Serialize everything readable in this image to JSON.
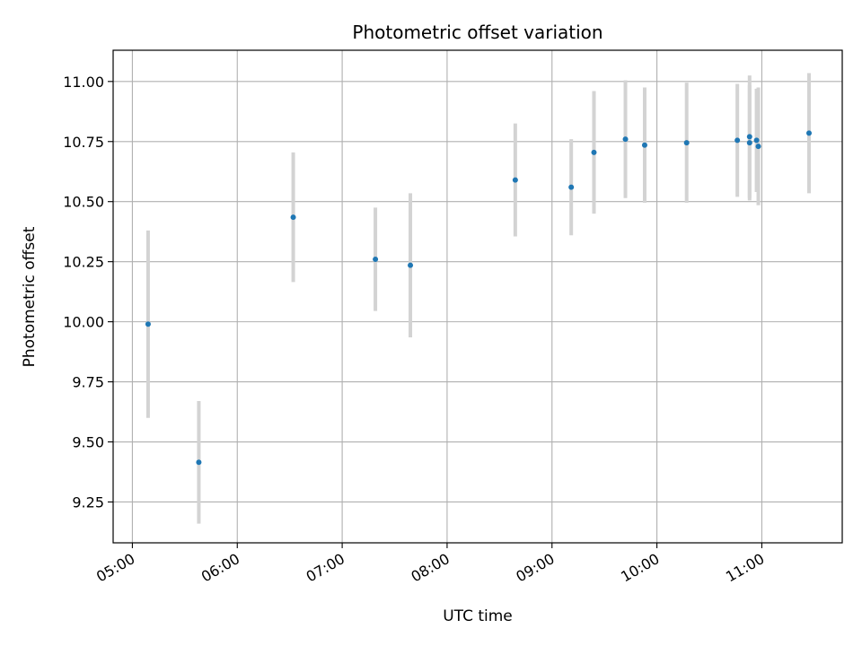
{
  "chart_data": {
    "type": "scatter",
    "title": "Photometric offset variation",
    "xlabel": "UTC time",
    "ylabel": "Photometric offset",
    "x_ticks": [
      "05:00",
      "06:00",
      "07:00",
      "08:00",
      "09:00",
      "10:00",
      "11:00"
    ],
    "y_ticks": [
      "9.25",
      "9.50",
      "9.75",
      "10.00",
      "10.25",
      "10.50",
      "10.75",
      "11.00"
    ],
    "ylim": [
      9.08,
      11.13
    ],
    "xlim": [
      "04:49",
      "11:46"
    ],
    "grid": true,
    "marker_color": "#1f77b4",
    "errorbar_color": "#d3d3d3",
    "points": [
      {
        "t": "05:09",
        "y": 9.99,
        "err": 0.39
      },
      {
        "t": "05:38",
        "y": 9.415,
        "err": 0.255
      },
      {
        "t": "06:32",
        "y": 10.435,
        "err": 0.27
      },
      {
        "t": "07:19",
        "y": 10.26,
        "err": 0.215
      },
      {
        "t": "07:39",
        "y": 10.235,
        "err": 0.3
      },
      {
        "t": "08:39",
        "y": 10.59,
        "err": 0.235
      },
      {
        "t": "09:11",
        "y": 10.56,
        "err": 0.2
      },
      {
        "t": "09:24",
        "y": 10.705,
        "err": 0.255
      },
      {
        "t": "09:42",
        "y": 10.76,
        "err": 0.245
      },
      {
        "t": "09:53",
        "y": 10.735,
        "err": 0.24
      },
      {
        "t": "10:17",
        "y": 10.745,
        "err": 0.25
      },
      {
        "t": "10:46",
        "y": 10.755,
        "err": 0.235
      },
      {
        "t": "10:53",
        "y": 10.77,
        "err": 0.255
      },
      {
        "t": "10:53",
        "y": 10.745,
        "err": 0.24
      },
      {
        "t": "10:57",
        "y": 10.755,
        "err": 0.215
      },
      {
        "t": "10:58",
        "y": 10.73,
        "err": 0.245
      },
      {
        "t": "11:27",
        "y": 10.785,
        "err": 0.25
      }
    ]
  }
}
